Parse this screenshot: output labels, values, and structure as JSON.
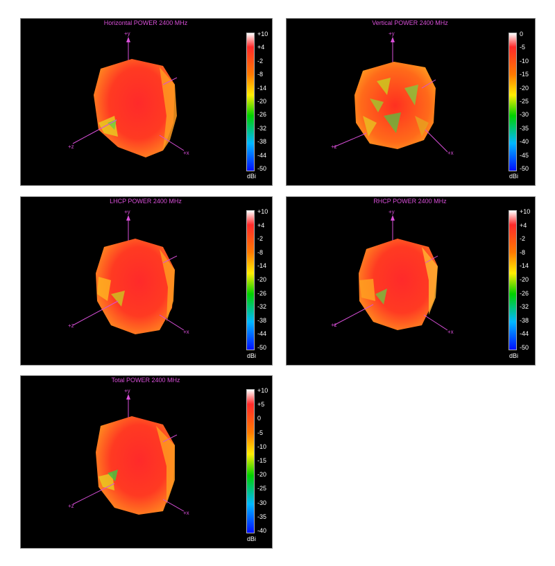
{
  "panels": [
    {
      "id": "horizontal",
      "title": "Horizontal POWER 2400  MHz",
      "colorbar_ticks": [
        "+10",
        "+4",
        "-2",
        "-8",
        "-14",
        "-20",
        "-26",
        "-32",
        "-38",
        "-44",
        "-50"
      ],
      "unit": "dBi",
      "axes": {
        "y": "+y",
        "z": "+z",
        "x": "+x"
      }
    },
    {
      "id": "vertical",
      "title": "Vertical POWER 2400  MHz",
      "colorbar_ticks": [
        "0",
        "-5",
        "-10",
        "-15",
        "-20",
        "-25",
        "-30",
        "-35",
        "-40",
        "-45",
        "-50"
      ],
      "unit": "dBi",
      "axes": {
        "y": "+y",
        "z": "+z",
        "x": "+x"
      }
    },
    {
      "id": "lhcp",
      "title": "LHCP POWER 2400  MHz",
      "colorbar_ticks": [
        "+10",
        "+4",
        "-2",
        "-8",
        "-14",
        "-20",
        "-26",
        "-32",
        "-38",
        "-44",
        "-50"
      ],
      "unit": "dBi",
      "axes": {
        "y": "+y",
        "z": "+z",
        "x": "+x"
      }
    },
    {
      "id": "rhcp",
      "title": "RHCP POWER 2400  MHz",
      "colorbar_ticks": [
        "+10",
        "+4",
        "-2",
        "-8",
        "-14",
        "-20",
        "-26",
        "-32",
        "-38",
        "-44",
        "-50"
      ],
      "unit": "dBi",
      "axes": {
        "y": "+y",
        "z": "+z",
        "x": "+x"
      }
    },
    {
      "id": "total",
      "title": "Total POWER 2400  MHz",
      "colorbar_ticks": [
        "+10",
        "+5",
        "0",
        "-5",
        "-10",
        "-15",
        "-20",
        "-25",
        "-30",
        "-35",
        "-40"
      ],
      "unit": "dBi",
      "axes": {
        "y": "+y",
        "z": "+z",
        "x": "+x"
      }
    }
  ],
  "colors": {
    "axis": "#d84fd8",
    "background": "#000000",
    "colorbar": [
      "#ffffff",
      "#ff2a2a",
      "#ff9a00",
      "#ffff00",
      "#00d000",
      "#00b0ff",
      "#0010ff"
    ]
  }
}
